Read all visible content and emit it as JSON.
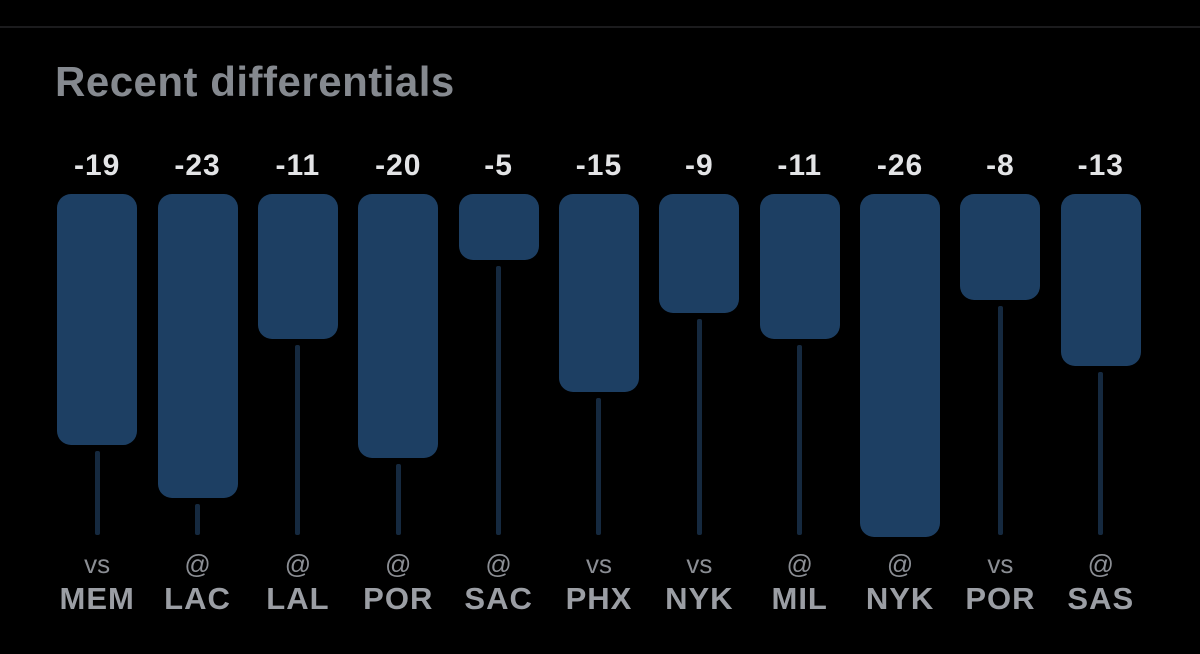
{
  "header": {
    "title": "Recent differentials"
  },
  "colors": {
    "background": "#000000",
    "divider": "#1b1b1d",
    "title_text": "#85898f",
    "bar_fill": "#1d3f63",
    "stick": "#15293f",
    "value_text": "#e3e4e6",
    "prefix_text": "#8b8e94",
    "team_text": "#9b9ea4"
  },
  "chart_data": {
    "type": "bar",
    "title": "Recent differentials",
    "orientation": "vertical-downward",
    "categories": [
      "vs MEM",
      "@ LAC",
      "@ LAL",
      "@ POR",
      "@ SAC",
      "vs PHX",
      "vs NYK",
      "@ MIL",
      "@ NYK",
      "vs POR",
      "@ SAS"
    ],
    "values": [
      -19,
      -23,
      -11,
      -20,
      -5,
      -15,
      -9,
      -11,
      -26,
      -8,
      -13
    ],
    "bars": [
      {
        "value": -19,
        "label": "-19",
        "prefix": "vs",
        "team": "MEM"
      },
      {
        "value": -23,
        "label": "-23",
        "prefix": "@",
        "team": "LAC"
      },
      {
        "value": -11,
        "label": "-11",
        "prefix": "@",
        "team": "LAL"
      },
      {
        "value": -20,
        "label": "-20",
        "prefix": "@",
        "team": "POR"
      },
      {
        "value": -5,
        "label": "-5",
        "prefix": "@",
        "team": "SAC"
      },
      {
        "value": -15,
        "label": "-15",
        "prefix": "vs",
        "team": "PHX"
      },
      {
        "value": -9,
        "label": "-9",
        "prefix": "vs",
        "team": "NYK"
      },
      {
        "value": -11,
        "label": "-11",
        "prefix": "@",
        "team": "MIL"
      },
      {
        "value": -26,
        "label": "-26",
        "prefix": "@",
        "team": "NYK"
      },
      {
        "value": -8,
        "label": "-8",
        "prefix": "vs",
        "team": "POR"
      },
      {
        "value": -13,
        "label": "-13",
        "prefix": "@",
        "team": "SAS"
      }
    ],
    "ylim": [
      -26,
      0
    ],
    "grid": false,
    "legend": false,
    "data_labels": "above each bar",
    "xlabel": "",
    "ylabel": ""
  }
}
